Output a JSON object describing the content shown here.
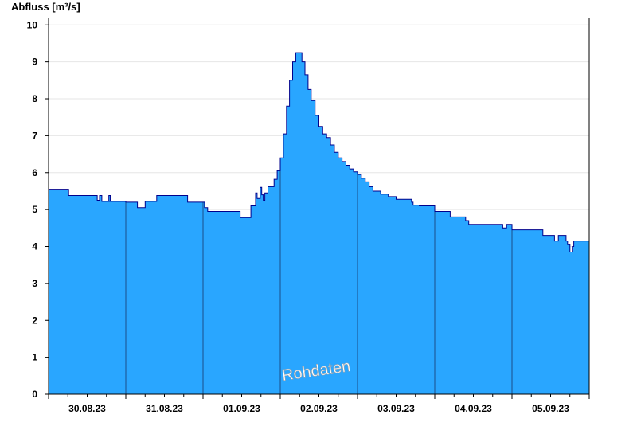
{
  "chart_data": {
    "type": "area",
    "ylabel": "Abfluss [m³/s]",
    "xlabel": "",
    "title": "",
    "ylim": [
      0,
      10.2
    ],
    "yticks": [
      0,
      1,
      2,
      3,
      4,
      5,
      6,
      7,
      8,
      9,
      10
    ],
    "xlim": [
      0,
      7
    ],
    "day_boundaries": [
      1,
      2,
      3,
      4,
      5,
      6
    ],
    "categories": [
      "30.08.23",
      "31.08.23",
      "01.09.23",
      "02.09.23",
      "03.09.23",
      "04.09.23",
      "05.09.23"
    ],
    "annotation": "Rohdaten",
    "grid": "horizontal",
    "colors": {
      "fill": "#29a6ff",
      "line": "#00008b",
      "grid": "#e6e6e6",
      "day_line": "#1a4f8a"
    },
    "series": [
      {
        "name": "",
        "x": [
          0,
          0.24,
          0.26,
          0.6,
          0.63,
          0.66,
          0.69,
          0.72,
          0.8,
          0.78,
          0.8,
          1.0,
          1.12,
          1.15,
          1.22,
          1.25,
          1.4,
          1.76,
          1.8,
          1.98,
          2.02,
          2.06,
          2.45,
          2.48,
          2.6,
          2.62,
          2.65,
          2.68,
          2.7,
          2.72,
          2.74,
          2.76,
          2.78,
          2.8,
          2.82,
          2.84,
          2.86,
          2.88,
          2.92,
          2.96,
          3.0,
          3.04,
          3.08,
          3.12,
          3.16,
          3.2,
          3.24,
          3.28,
          3.32,
          3.36,
          3.4,
          3.45,
          3.5,
          3.55,
          3.6,
          3.65,
          3.7,
          3.75,
          3.8,
          3.85,
          3.9,
          3.95,
          4.0,
          4.05,
          4.1,
          4.15,
          4.2,
          4.3,
          4.4,
          4.5,
          4.7,
          4.72,
          4.75,
          4.8,
          4.85,
          5.0,
          5.03,
          5.2,
          5.4,
          5.42,
          5.44,
          5.85,
          5.88,
          5.9,
          5.93,
          5.96,
          6.0,
          6.2,
          6.4,
          6.5,
          6.52,
          6.55,
          6.6,
          6.65,
          6.7,
          6.72,
          6.75,
          6.78,
          6.8,
          7.0
        ],
        "values": [
          5.55,
          5.55,
          5.38,
          5.38,
          5.25,
          5.38,
          5.22,
          5.22,
          5.38,
          5.22,
          5.22,
          5.2,
          5.2,
          5.05,
          5.05,
          5.22,
          5.38,
          5.38,
          5.2,
          5.2,
          5.05,
          4.95,
          4.95,
          4.78,
          4.78,
          5.1,
          5.1,
          5.45,
          5.3,
          5.3,
          5.6,
          5.4,
          5.25,
          5.45,
          5.45,
          5.62,
          5.62,
          5.62,
          5.82,
          6.05,
          6.4,
          7.05,
          7.8,
          8.5,
          9.0,
          9.25,
          9.25,
          9.0,
          8.65,
          8.25,
          7.95,
          7.55,
          7.25,
          7.05,
          6.95,
          6.75,
          6.55,
          6.4,
          6.3,
          6.2,
          6.1,
          6.02,
          5.95,
          5.85,
          5.75,
          5.62,
          5.5,
          5.42,
          5.35,
          5.28,
          5.2,
          5.12,
          5.12,
          5.1,
          5.1,
          4.95,
          4.95,
          4.8,
          4.7,
          4.7,
          4.6,
          4.6,
          4.5,
          4.5,
          4.6,
          4.6,
          4.45,
          4.45,
          4.3,
          4.3,
          4.3,
          4.15,
          4.3,
          4.3,
          4.15,
          4.05,
          3.85,
          4.0,
          4.15,
          4.15
        ]
      }
    ]
  }
}
